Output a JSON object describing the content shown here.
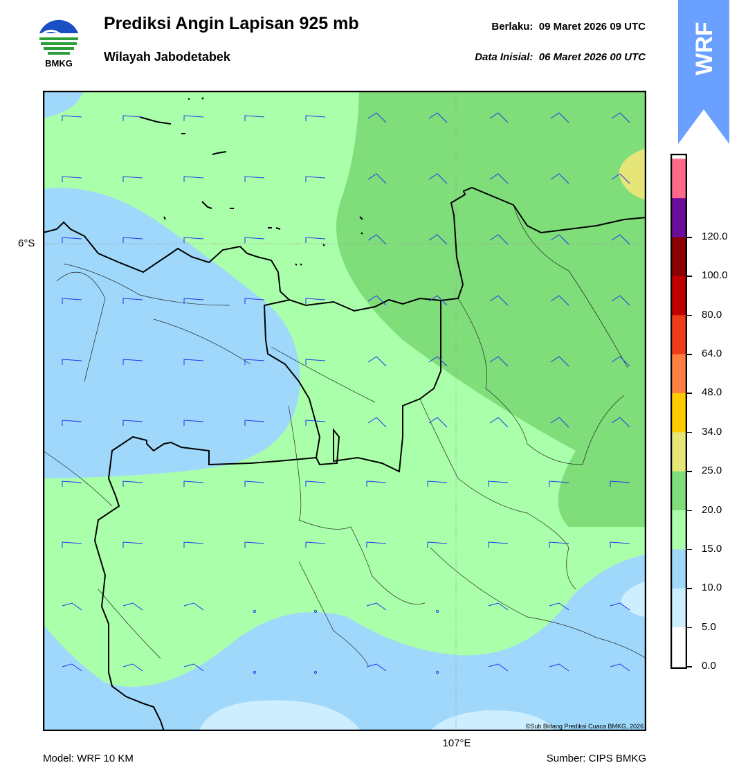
{
  "header": {
    "title": "Prediksi Angin Lapisan 925 mb",
    "subtitle": "Wilayah Jabodetabek",
    "valid_label": "Berlaku:",
    "valid_value": "09 Maret 2026 09 UTC",
    "init_label": "Data Inisial:",
    "init_value": "06 Maret 2026 00 UTC"
  },
  "logo": {
    "text": "BMKG",
    "icon": "bmkg-logo-icon"
  },
  "badge": {
    "text": "WRF",
    "color": "#6aa0ff"
  },
  "map": {
    "lat_label": "6°S",
    "lon_label": "107°E",
    "credit": "©Sub Bidang Prediksi Cuaca BMKG, 2026",
    "colors": {
      "0-5": "#cceeff",
      "5-10": "#9fd8fa",
      "10-15": "#aaffaa",
      "15-20": "#7fde7a",
      "20-25": "#e6e678"
    }
  },
  "colorbar": {
    "ticks": [
      "0.0",
      "5.0",
      "10.0",
      "15.0",
      "20.0",
      "25.0",
      "34.0",
      "48.0",
      "64.0",
      "80.0",
      "100.0",
      "120.0"
    ],
    "colors": [
      "#ffffff",
      "#cceeff",
      "#9fd8fa",
      "#aaffaa",
      "#7fde7a",
      "#e6e678",
      "#ffcc00",
      "#ff8040",
      "#ee3b1a",
      "#c00000",
      "#8b0000",
      "#6a0d9a",
      "#ff6a8a"
    ]
  },
  "footer": {
    "model": "Model: WRF 10 KM",
    "source": "Sumber: CIPS BMKG"
  }
}
